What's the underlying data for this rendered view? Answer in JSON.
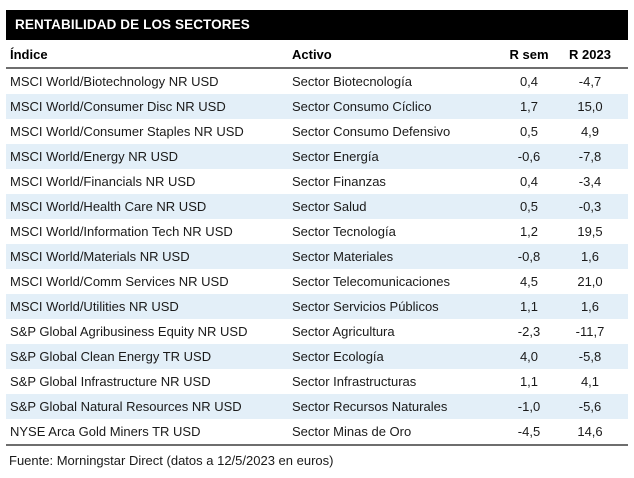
{
  "title": "RENTABILIDAD DE LOS SECTORES",
  "footer": "Fuente: Morningstar Direct (datos a 12/5/2023 en euros)",
  "colors": {
    "title_bar_bg": "#000000",
    "title_bar_text": "#ffffff",
    "row_alt_bg": "#e3eff8",
    "separator_line": "#6e6e6e",
    "body_text": "#1a1a1a"
  },
  "chart_data": {
    "type": "table",
    "title": "RENTABILIDAD DE LOS SECTORES",
    "columns": [
      "Índice",
      "Activo",
      "R sem",
      "R 2023"
    ],
    "rows": [
      [
        "MSCI World/Biotechnology NR USD",
        "Sector Biotecnología",
        "0,4",
        "-4,7"
      ],
      [
        "MSCI World/Consumer Disc NR USD",
        "Sector Consumo Cíclico",
        "1,7",
        "15,0"
      ],
      [
        "MSCI World/Consumer Staples NR USD",
        "Sector Consumo Defensivo",
        "0,5",
        "4,9"
      ],
      [
        "MSCI World/Energy NR USD",
        "Sector Energía",
        "-0,6",
        "-7,8"
      ],
      [
        "MSCI World/Financials NR USD",
        "Sector Finanzas",
        "0,4",
        "-3,4"
      ],
      [
        "MSCI World/Health Care NR USD",
        "Sector Salud",
        "0,5",
        "-0,3"
      ],
      [
        "MSCI World/Information Tech NR USD",
        "Sector Tecnología",
        "1,2",
        "19,5"
      ],
      [
        "MSCI World/Materials NR USD",
        "Sector Materiales",
        "-0,8",
        "1,6"
      ],
      [
        "MSCI World/Comm Services NR USD",
        "Sector Telecomunicaciones",
        "4,5",
        "21,0"
      ],
      [
        "MSCI World/Utilities NR USD",
        "Sector Servicios Públicos",
        "1,1",
        "1,6"
      ],
      [
        "S&P Global Agribusiness Equity NR USD",
        "Sector Agricultura",
        "-2,3",
        "-11,7"
      ],
      [
        "S&P Global Clean Energy TR USD",
        "Sector Ecología",
        "4,0",
        "-5,8"
      ],
      [
        "S&P Global Infrastructure NR USD",
        "Sector Infrastructuras",
        "1,1",
        "4,1"
      ],
      [
        "S&P Global Natural Resources NR USD",
        "Sector Recursos Naturales",
        "-1,0",
        "-5,6"
      ],
      [
        "NYSE Arca Gold Miners TR USD",
        "Sector Minas de Oro",
        "-4,5",
        "14,6"
      ]
    ],
    "source_note": "Fuente: Morningstar Direct (datos a 12/5/2023 en euros)",
    "layout": {
      "striped_rows": true,
      "stripe_pattern": "even rows pale blue, odd rows white",
      "numeric_columns": [
        "R sem",
        "R 2023"
      ]
    }
  }
}
